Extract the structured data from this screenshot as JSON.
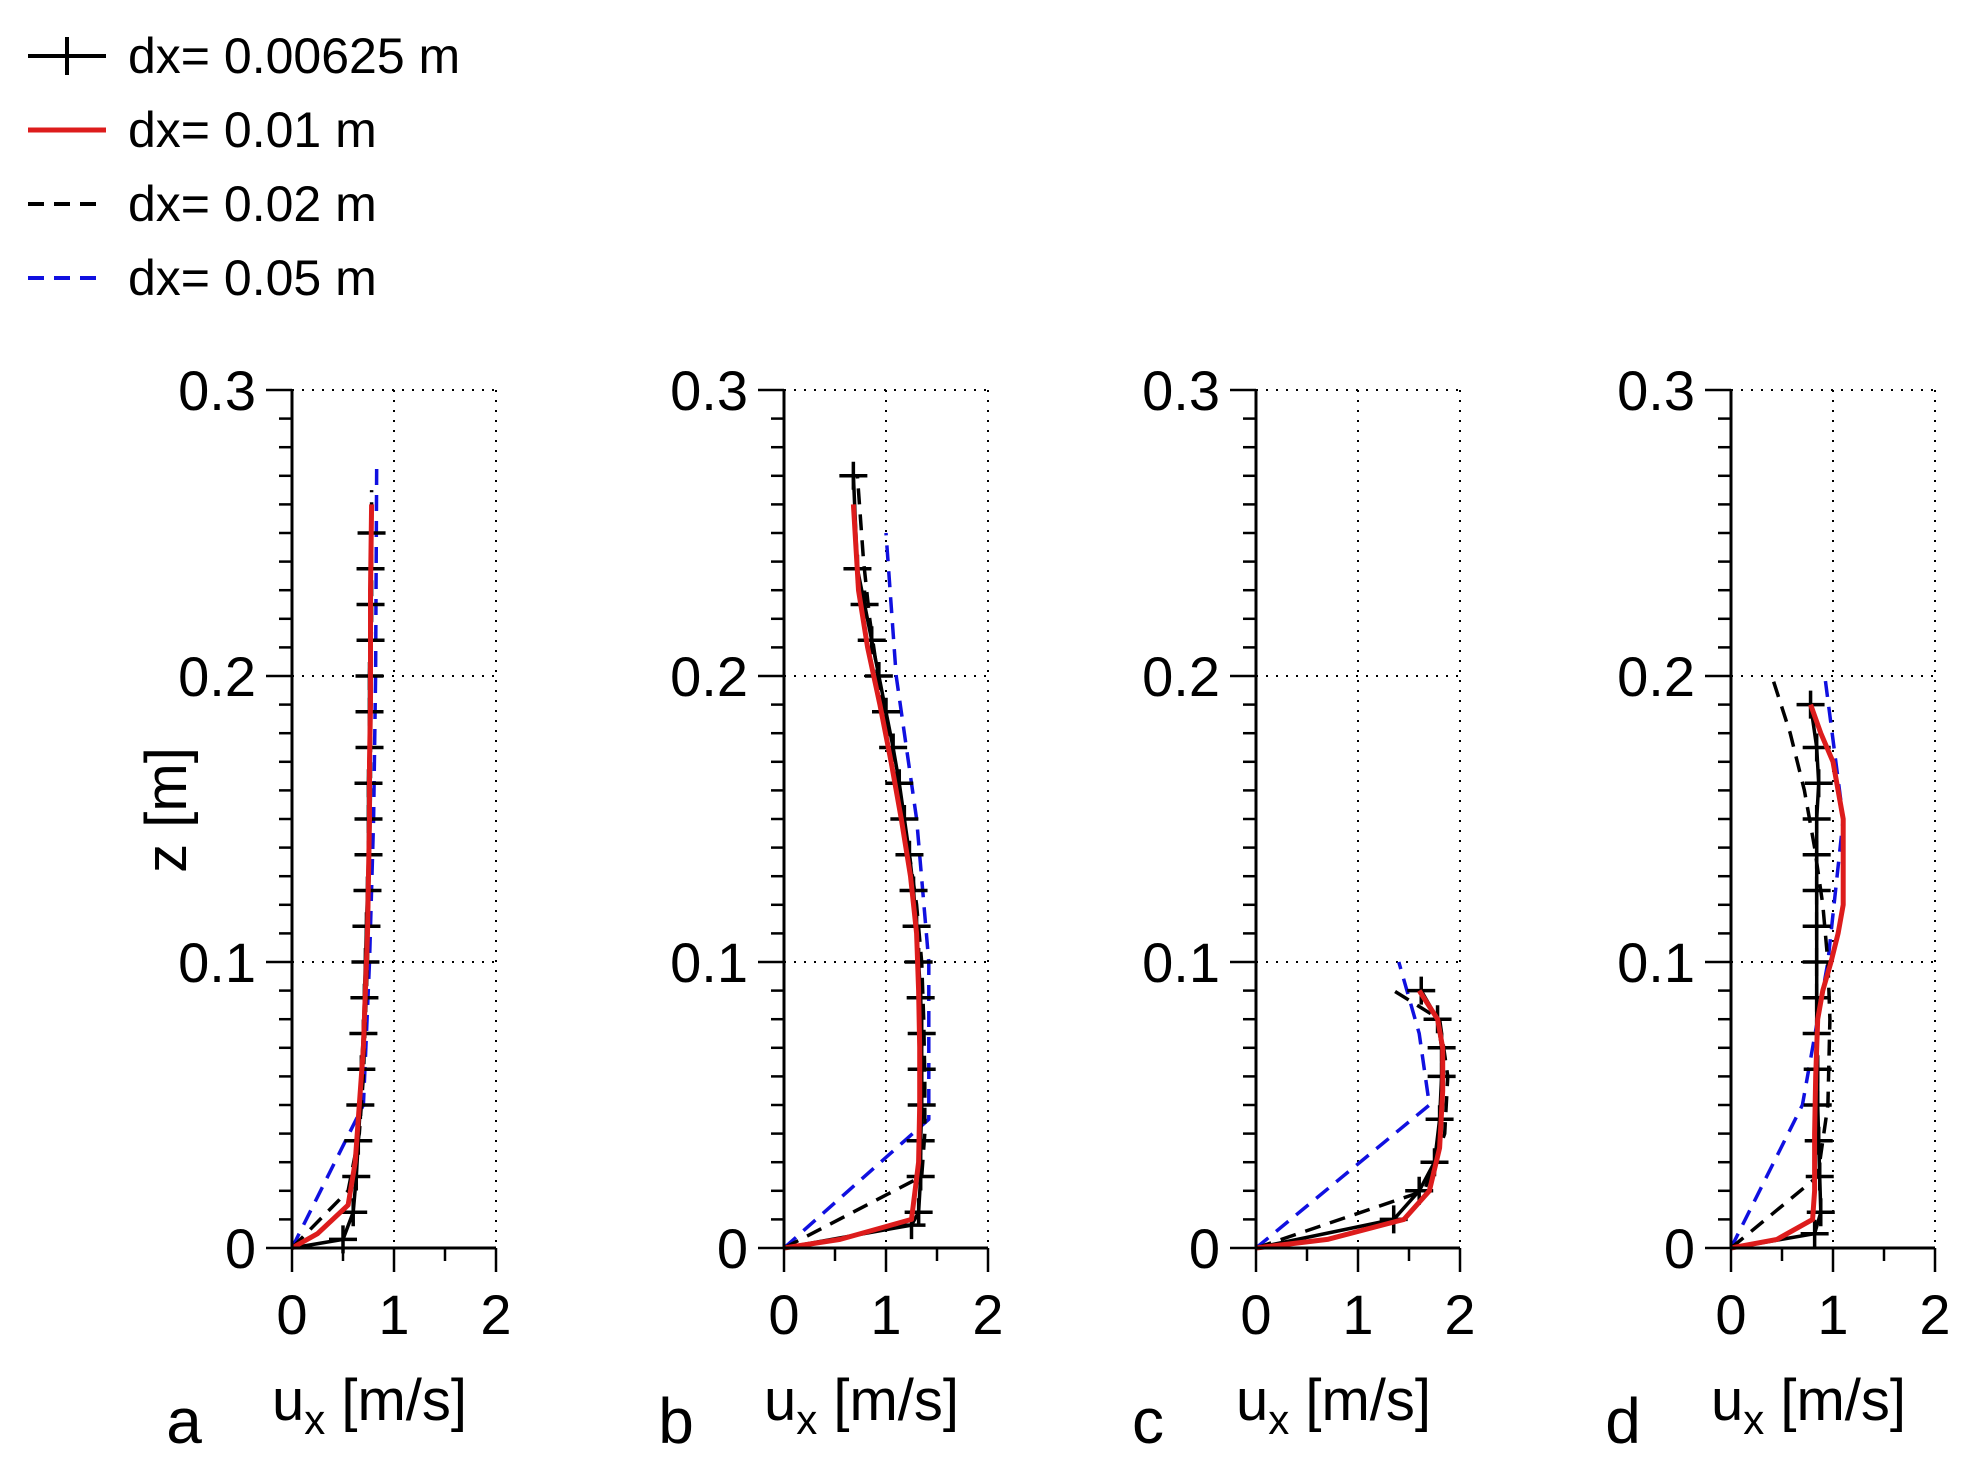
{
  "legend": [
    {
      "name": "dx= 0.00625 m",
      "color": "#000000",
      "style": "plus"
    },
    {
      "name": "dx= 0.01 m",
      "color": "#dd1c1c",
      "style": "solid"
    },
    {
      "name": "dx= 0.02 m",
      "color": "#000000",
      "style": "dashed"
    },
    {
      "name": "dx= 0.05 m",
      "color": "#1010e0",
      "style": "dashed"
    }
  ],
  "chart_data": [
    {
      "type": "line",
      "panel": "a",
      "xlabel_main": "u",
      "xlabel_sub": "x",
      "xlabel_unit": "[m/s]",
      "ylabel": "z [m]",
      "xlim": [
        0,
        2
      ],
      "ylim": [
        0,
        0.3
      ],
      "xticks": [
        "0",
        "1",
        "2"
      ],
      "yticks": [
        "0",
        "0.1",
        "0.2",
        "0.3"
      ],
      "grid": true,
      "series": [
        {
          "name": "dx= 0.00625 m",
          "x": [
            0.0,
            0.5,
            0.6,
            0.63,
            0.65,
            0.67,
            0.68,
            0.7,
            0.71,
            0.72,
            0.73,
            0.74,
            0.75,
            0.75,
            0.75,
            0.76,
            0.76,
            0.76,
            0.77,
            0.77,
            0.77,
            0.78
          ],
          "z": [
            0.0,
            0.003,
            0.0125,
            0.025,
            0.0375,
            0.05,
            0.0625,
            0.075,
            0.0875,
            0.1,
            0.1125,
            0.125,
            0.1375,
            0.15,
            0.1625,
            0.175,
            0.1875,
            0.2,
            0.2125,
            0.225,
            0.2375,
            0.25
          ]
        },
        {
          "name": "dx= 0.01 m",
          "x": [
            0.0,
            0.25,
            0.55,
            0.62,
            0.66,
            0.7,
            0.72,
            0.74,
            0.75,
            0.76,
            0.76,
            0.77,
            0.77,
            0.77,
            0.78
          ],
          "z": [
            0.0,
            0.005,
            0.015,
            0.03,
            0.05,
            0.07,
            0.09,
            0.11,
            0.13,
            0.15,
            0.17,
            0.19,
            0.21,
            0.23,
            0.26
          ]
        },
        {
          "name": "dx= 0.02 m",
          "x": [
            0.0,
            0.55,
            0.66,
            0.7,
            0.72,
            0.74,
            0.75,
            0.76,
            0.77,
            0.77,
            0.77,
            0.78,
            0.78,
            0.78
          ],
          "z": [
            0.0,
            0.02,
            0.04,
            0.06,
            0.08,
            0.1,
            0.12,
            0.14,
            0.16,
            0.18,
            0.2,
            0.22,
            0.24,
            0.265
          ]
        },
        {
          "name": "dx= 0.05 m",
          "x": [
            0.0,
            0.7,
            0.76,
            0.8,
            0.82,
            0.83
          ],
          "z": [
            0.0,
            0.05,
            0.1,
            0.15,
            0.2,
            0.275
          ]
        }
      ]
    },
    {
      "type": "line",
      "panel": "b",
      "xlabel_main": "u",
      "xlabel_sub": "x",
      "xlabel_unit": "[m/s]",
      "xlim": [
        0,
        2
      ],
      "ylim": [
        0,
        0.3
      ],
      "xticks": [
        "0",
        "1",
        "2"
      ],
      "yticks": [
        "0",
        "0.1",
        "0.2",
        "0.3"
      ],
      "grid": true,
      "series": [
        {
          "name": "dx= 0.00625 m",
          "x": [
            0.0,
            1.25,
            1.32,
            1.34,
            1.34,
            1.35,
            1.35,
            1.35,
            1.34,
            1.32,
            1.3,
            1.27,
            1.23,
            1.18,
            1.13,
            1.07,
            1.0,
            0.93,
            0.86,
            0.79,
            0.72,
            0.68
          ],
          "z": [
            0.0,
            0.008,
            0.0125,
            0.025,
            0.0375,
            0.05,
            0.0625,
            0.075,
            0.0875,
            0.1,
            0.1125,
            0.125,
            0.1375,
            0.15,
            0.1625,
            0.175,
            0.1875,
            0.2,
            0.2125,
            0.225,
            0.2375,
            0.27
          ]
        },
        {
          "name": "dx= 0.01 m",
          "x": [
            0.0,
            0.55,
            1.25,
            1.32,
            1.33,
            1.33,
            1.32,
            1.3,
            1.24,
            1.15,
            1.05,
            0.94,
            0.82,
            0.73,
            0.68
          ],
          "z": [
            0.0,
            0.003,
            0.01,
            0.03,
            0.05,
            0.07,
            0.09,
            0.11,
            0.13,
            0.15,
            0.17,
            0.19,
            0.21,
            0.23,
            0.26
          ]
        },
        {
          "name": "dx= 0.02 m",
          "x": [
            0.0,
            1.35,
            1.38,
            1.38,
            1.37,
            1.35,
            1.3,
            1.22,
            1.12,
            1.02,
            0.92,
            0.84,
            0.78,
            0.72
          ],
          "z": [
            0.0,
            0.025,
            0.04,
            0.06,
            0.08,
            0.1,
            0.12,
            0.14,
            0.16,
            0.18,
            0.2,
            0.22,
            0.24,
            0.27
          ]
        },
        {
          "name": "dx= 0.05 m",
          "x": [
            0.0,
            1.42,
            1.42,
            1.3,
            1.1,
            1.0
          ],
          "z": [
            0.0,
            0.045,
            0.1,
            0.15,
            0.2,
            0.25
          ]
        }
      ]
    },
    {
      "type": "line",
      "panel": "c",
      "xlabel_main": "u",
      "xlabel_sub": "x",
      "xlabel_unit": "[m/s]",
      "xlim": [
        0,
        2
      ],
      "ylim": [
        0,
        0.3
      ],
      "xticks": [
        "0",
        "1",
        "2"
      ],
      "yticks": [
        "0",
        "0.1",
        "0.2",
        "0.3"
      ],
      "grid": true,
      "series": [
        {
          "name": "dx= 0.00625 m",
          "x": [
            0.0,
            1.35,
            1.6,
            1.75,
            1.8,
            1.82,
            1.82,
            1.78,
            1.62
          ],
          "z": [
            0.0,
            0.01,
            0.02,
            0.03,
            0.045,
            0.06,
            0.07,
            0.08,
            0.09
          ]
        },
        {
          "name": "dx= 0.01 m",
          "x": [
            0.0,
            0.7,
            1.45,
            1.7,
            1.8,
            1.83,
            1.83,
            1.78,
            1.6
          ],
          "z": [
            0.0,
            0.003,
            0.01,
            0.02,
            0.035,
            0.055,
            0.07,
            0.08,
            0.09
          ]
        },
        {
          "name": "dx= 0.02 m",
          "x": [
            0.0,
            1.65,
            1.85,
            1.88,
            1.8,
            1.35
          ],
          "z": [
            0.0,
            0.02,
            0.04,
            0.06,
            0.08,
            0.09
          ]
        },
        {
          "name": "dx= 0.05 m",
          "x": [
            0.0,
            1.7,
            1.6,
            1.4
          ],
          "z": [
            0.0,
            0.05,
            0.075,
            0.1
          ]
        }
      ]
    },
    {
      "type": "line",
      "panel": "d",
      "xlabel_main": "u",
      "xlabel_sub": "x",
      "xlabel_unit": "[m/s]",
      "xlim": [
        0,
        2
      ],
      "ylim": [
        0,
        0.3
      ],
      "xticks": [
        "0",
        "1",
        "2"
      ],
      "yticks": [
        "0",
        "0.1",
        "0.2",
        "0.3"
      ],
      "grid": true,
      "series": [
        {
          "name": "dx= 0.00625 m",
          "x": [
            0.0,
            0.82,
            0.88,
            0.87,
            0.86,
            0.85,
            0.85,
            0.84,
            0.84,
            0.84,
            0.84,
            0.84,
            0.84,
            0.84,
            0.86,
            0.84,
            0.78
          ],
          "z": [
            0.0,
            0.005,
            0.0125,
            0.025,
            0.0375,
            0.05,
            0.0625,
            0.075,
            0.0875,
            0.1,
            0.1125,
            0.125,
            0.1375,
            0.15,
            0.1625,
            0.175,
            0.19
          ]
        },
        {
          "name": "dx= 0.01 m",
          "x": [
            0.0,
            0.45,
            0.8,
            0.82,
            0.82,
            0.83,
            0.85,
            0.9,
            0.98,
            1.05,
            1.1,
            1.1,
            1.0,
            0.88,
            0.78
          ],
          "z": [
            0.0,
            0.003,
            0.01,
            0.02,
            0.04,
            0.06,
            0.08,
            0.09,
            0.1,
            0.11,
            0.12,
            0.15,
            0.17,
            0.18,
            0.19
          ]
        },
        {
          "name": "dx= 0.02 m",
          "x": [
            0.0,
            0.85,
            0.95,
            0.97,
            0.95,
            0.9,
            0.82,
            0.72,
            0.58,
            0.4
          ],
          "z": [
            0.0,
            0.025,
            0.05,
            0.08,
            0.1,
            0.12,
            0.14,
            0.16,
            0.18,
            0.2
          ]
        },
        {
          "name": "dx= 0.05 m",
          "x": [
            0.0,
            0.7,
            0.95,
            1.1,
            0.92
          ],
          "z": [
            0.0,
            0.05,
            0.1,
            0.15,
            0.2
          ]
        }
      ]
    }
  ]
}
